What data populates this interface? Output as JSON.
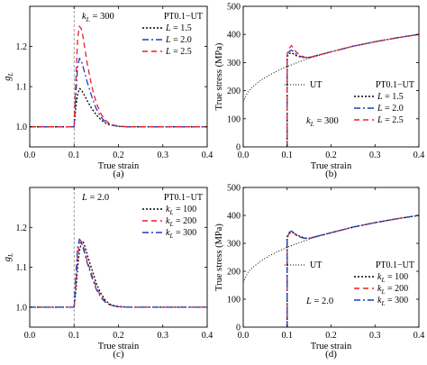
{
  "chart_data": [
    {
      "id": "a",
      "type": "line",
      "panel_label": "(a)",
      "xlabel": "True strain",
      "ylabel": "g_L",
      "xlim": [
        0.0,
        0.4
      ],
      "ylim": [
        0.95,
        1.3
      ],
      "xticks": [
        0.0,
        0.1,
        0.2,
        0.3,
        0.4
      ],
      "yticks": [
        1.0,
        1.1,
        1.2
      ],
      "vline_x": 0.1,
      "annotation": "k_L = 300",
      "legend_title": "PT0.1−UT",
      "legend_position": "top-right",
      "series": [
        {
          "name": "L = 1.5",
          "color": "#000000",
          "dash": "dotted",
          "x": [
            0.0,
            0.1,
            0.1,
            0.104,
            0.108,
            0.112,
            0.116,
            0.12,
            0.125,
            0.13,
            0.14,
            0.15,
            0.16,
            0.17,
            0.18,
            0.19,
            0.2,
            0.22,
            0.25,
            0.3,
            0.35,
            0.4
          ],
          "y": [
            1.0,
            1.0,
            1.0,
            1.05,
            1.08,
            1.095,
            1.093,
            1.085,
            1.075,
            1.064,
            1.045,
            1.03,
            1.018,
            1.01,
            1.005,
            1.003,
            1.001,
            1.0,
            1.0,
            1.0,
            1.0,
            1.0
          ]
        },
        {
          "name": "L = 2.0",
          "color": "#1f3fbf",
          "dash": "dashdot",
          "x": [
            0.0,
            0.1,
            0.1,
            0.104,
            0.108,
            0.112,
            0.116,
            0.12,
            0.125,
            0.13,
            0.14,
            0.15,
            0.16,
            0.17,
            0.18,
            0.19,
            0.2,
            0.22,
            0.25,
            0.3,
            0.35,
            0.4
          ],
          "y": [
            1.0,
            1.0,
            1.0,
            1.08,
            1.15,
            1.17,
            1.165,
            1.15,
            1.13,
            1.11,
            1.075,
            1.045,
            1.025,
            1.013,
            1.006,
            1.003,
            1.001,
            1.0,
            1.0,
            1.0,
            1.0,
            1.0
          ]
        },
        {
          "name": "L = 2.5",
          "color": "#e8212b",
          "dash": "dashed",
          "x": [
            0.0,
            0.1,
            0.1,
            0.104,
            0.108,
            0.112,
            0.116,
            0.12,
            0.125,
            0.13,
            0.14,
            0.15,
            0.16,
            0.17,
            0.18,
            0.19,
            0.2,
            0.22,
            0.25,
            0.3,
            0.35,
            0.4
          ],
          "y": [
            1.0,
            1.0,
            1.0,
            1.12,
            1.22,
            1.25,
            1.245,
            1.225,
            1.19,
            1.155,
            1.1,
            1.06,
            1.033,
            1.017,
            1.008,
            1.004,
            1.002,
            1.0,
            1.0,
            1.0,
            1.0,
            1.0
          ]
        }
      ]
    },
    {
      "id": "b",
      "type": "line",
      "panel_label": "(b)",
      "xlabel": "True strain",
      "ylabel": "True stress (MPa)",
      "xlim": [
        0.0,
        0.4
      ],
      "ylim": [
        0,
        500
      ],
      "xticks": [
        0.0,
        0.1,
        0.2,
        0.3,
        0.4
      ],
      "yticks": [
        0,
        100,
        200,
        300,
        400,
        500
      ],
      "annotation": "k_L = 300",
      "legend_title": "PT0.1−UT",
      "legend_position": "bottom-right",
      "series": [
        {
          "name": "UT",
          "color": "#000000",
          "dash": "finedot",
          "x": [
            0.0,
            0.01,
            0.02,
            0.04,
            0.06,
            0.08,
            0.1,
            0.12,
            0.15,
            0.2,
            0.25,
            0.3,
            0.35,
            0.4
          ],
          "y": [
            160,
            195,
            212,
            237,
            256,
            272,
            286,
            298,
            315,
            338,
            358,
            374,
            388,
            400
          ]
        },
        {
          "name": "L = 1.5",
          "color": "#000000",
          "dash": "dotted",
          "x": [
            0.1,
            0.1,
            0.105,
            0.11,
            0.115,
            0.12,
            0.13,
            0.14,
            0.15,
            0.2,
            0.25,
            0.3,
            0.35,
            0.4
          ],
          "y": [
            0,
            320,
            332,
            335,
            330,
            325,
            320,
            318,
            318,
            338,
            358,
            374,
            388,
            400
          ]
        },
        {
          "name": "L = 2.0",
          "color": "#1f3fbf",
          "dash": "dashdot",
          "x": [
            0.1,
            0.1,
            0.105,
            0.11,
            0.115,
            0.12,
            0.13,
            0.14,
            0.15,
            0.2,
            0.25,
            0.3,
            0.35,
            0.4
          ],
          "y": [
            0,
            325,
            340,
            344,
            338,
            330,
            322,
            318,
            318,
            338,
            358,
            374,
            388,
            400
          ]
        },
        {
          "name": "L = 2.5",
          "color": "#e8212b",
          "dash": "dashed",
          "x": [
            0.1,
            0.1,
            0.105,
            0.11,
            0.115,
            0.12,
            0.13,
            0.14,
            0.15,
            0.2,
            0.25,
            0.3,
            0.35,
            0.4
          ],
          "y": [
            0,
            330,
            352,
            360,
            350,
            338,
            325,
            319,
            318,
            338,
            358,
            374,
            388,
            400
          ]
        }
      ]
    },
    {
      "id": "c",
      "type": "line",
      "panel_label": "(c)",
      "xlabel": "True strain",
      "ylabel": "g_L",
      "xlim": [
        0.0,
        0.4
      ],
      "ylim": [
        0.95,
        1.3
      ],
      "xticks": [
        0.0,
        0.1,
        0.2,
        0.3,
        0.4
      ],
      "yticks": [
        1.0,
        1.1,
        1.2
      ],
      "vline_x": 0.1,
      "annotation": "L = 2.0",
      "legend_title": "PT0.1−UT",
      "legend_position": "top-right",
      "series": [
        {
          "name": "k_L = 100",
          "color": "#000000",
          "dash": "dotted",
          "x": [
            0.0,
            0.1,
            0.1,
            0.104,
            0.108,
            0.112,
            0.116,
            0.12,
            0.125,
            0.13,
            0.14,
            0.15,
            0.16,
            0.17,
            0.18,
            0.19,
            0.2,
            0.22,
            0.25,
            0.3,
            0.35,
            0.4
          ],
          "y": [
            1.0,
            1.0,
            1.0,
            1.04,
            1.1,
            1.14,
            1.16,
            1.165,
            1.15,
            1.13,
            1.095,
            1.06,
            1.035,
            1.018,
            1.008,
            1.004,
            1.002,
            1.0,
            1.0,
            1.0,
            1.0,
            1.0
          ]
        },
        {
          "name": "k_L = 200",
          "color": "#e8212b",
          "dash": "dashed",
          "x": [
            0.0,
            0.1,
            0.1,
            0.104,
            0.108,
            0.112,
            0.116,
            0.12,
            0.125,
            0.13,
            0.14,
            0.15,
            0.16,
            0.17,
            0.18,
            0.19,
            0.2,
            0.22,
            0.25,
            0.3,
            0.35,
            0.4
          ],
          "y": [
            1.0,
            1.0,
            1.0,
            1.06,
            1.13,
            1.16,
            1.165,
            1.155,
            1.135,
            1.115,
            1.08,
            1.05,
            1.028,
            1.014,
            1.006,
            1.003,
            1.001,
            1.0,
            1.0,
            1.0,
            1.0,
            1.0
          ]
        },
        {
          "name": "k_L = 300",
          "color": "#1f3fbf",
          "dash": "dashdot",
          "x": [
            0.0,
            0.1,
            0.1,
            0.104,
            0.108,
            0.112,
            0.116,
            0.12,
            0.125,
            0.13,
            0.14,
            0.15,
            0.16,
            0.17,
            0.18,
            0.19,
            0.2,
            0.22,
            0.25,
            0.3,
            0.35,
            0.4
          ],
          "y": [
            1.0,
            1.0,
            1.0,
            1.08,
            1.15,
            1.17,
            1.165,
            1.15,
            1.13,
            1.11,
            1.075,
            1.045,
            1.025,
            1.013,
            1.006,
            1.003,
            1.001,
            1.0,
            1.0,
            1.0,
            1.0,
            1.0
          ]
        }
      ]
    },
    {
      "id": "d",
      "type": "line",
      "panel_label": "(d)",
      "xlabel": "True strain",
      "ylabel": "True stress (MPa)",
      "xlim": [
        0.0,
        0.4
      ],
      "ylim": [
        0,
        500
      ],
      "xticks": [
        0.0,
        0.1,
        0.2,
        0.3,
        0.4
      ],
      "yticks": [
        0,
        100,
        200,
        300,
        400,
        500
      ],
      "annotation": "L = 2.0",
      "legend_title": "PT0.1−UT",
      "legend_position": "bottom-right",
      "series": [
        {
          "name": "UT",
          "color": "#000000",
          "dash": "finedot",
          "x": [
            0.0,
            0.01,
            0.02,
            0.04,
            0.06,
            0.08,
            0.1,
            0.12,
            0.15,
            0.2,
            0.25,
            0.3,
            0.35,
            0.4
          ],
          "y": [
            160,
            195,
            212,
            237,
            256,
            272,
            286,
            298,
            315,
            338,
            358,
            374,
            388,
            400
          ]
        },
        {
          "name": "k_L = 100",
          "color": "#000000",
          "dash": "dotted",
          "x": [
            0.1,
            0.1,
            0.105,
            0.11,
            0.115,
            0.12,
            0.13,
            0.14,
            0.15,
            0.2,
            0.25,
            0.3,
            0.35,
            0.4
          ],
          "y": [
            0,
            320,
            335,
            340,
            338,
            332,
            324,
            319,
            318,
            338,
            358,
            374,
            388,
            400
          ]
        },
        {
          "name": "k_L = 200",
          "color": "#e8212b",
          "dash": "dashed",
          "x": [
            0.1,
            0.1,
            0.105,
            0.11,
            0.115,
            0.12,
            0.13,
            0.14,
            0.15,
            0.2,
            0.25,
            0.3,
            0.35,
            0.4
          ],
          "y": [
            0,
            322,
            338,
            342,
            337,
            330,
            322,
            318,
            318,
            338,
            358,
            374,
            388,
            400
          ]
        },
        {
          "name": "k_L = 300",
          "color": "#1f3fbf",
          "dash": "dashdot",
          "x": [
            0.1,
            0.1,
            0.105,
            0.11,
            0.115,
            0.12,
            0.13,
            0.14,
            0.15,
            0.2,
            0.25,
            0.3,
            0.35,
            0.4
          ],
          "y": [
            0,
            325,
            340,
            344,
            338,
            330,
            322,
            318,
            318,
            338,
            358,
            374,
            388,
            400
          ]
        }
      ]
    }
  ]
}
